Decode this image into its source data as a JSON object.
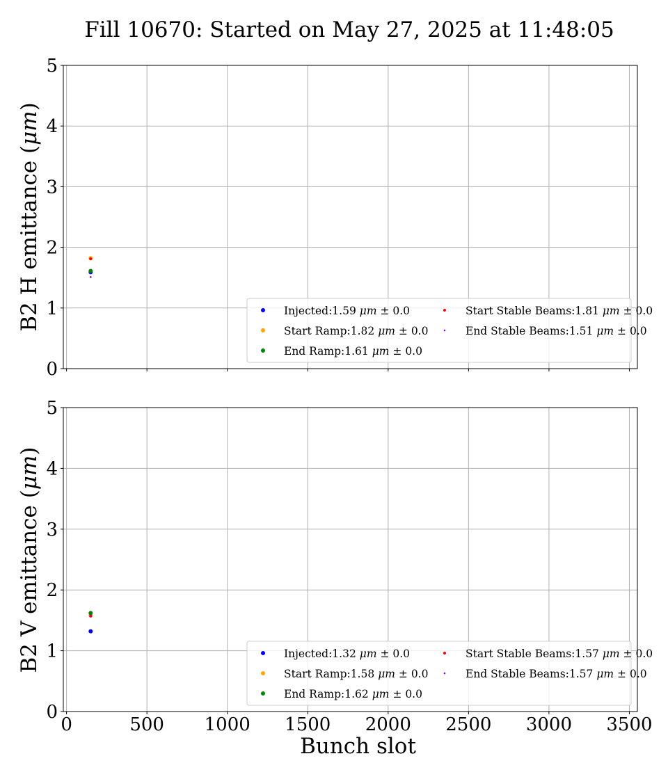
{
  "figure": {
    "title": "Fill 10670: Started on May 27, 2025 at 11:48:05"
  },
  "chart_data": [
    {
      "type": "scatter",
      "ylabel": "B2 H emittance ($\\mu m$)",
      "ylabel_parts": [
        "B2 H emittance (",
        "μm",
        ")"
      ],
      "xlabel": "",
      "xlim": [
        -20,
        3550
      ],
      "ylim": [
        0,
        5
      ],
      "xticks": [
        0,
        500,
        1000,
        1500,
        2000,
        2500,
        3000,
        3500
      ],
      "yticks": [
        0,
        1,
        2,
        3,
        4,
        5
      ],
      "show_xtick_labels": false,
      "grid": true,
      "legend_position": "lower right",
      "legend_columns": 2,
      "series": [
        {
          "name": "Injected",
          "label": "Injected:1.59",
          "value": "1.59",
          "err": "0.0",
          "color": "#0000ff",
          "radius": 3,
          "points": [
            [
              150,
              1.59
            ]
          ]
        },
        {
          "name": "Start Ramp",
          "label": "Start Ramp:1.82",
          "value": "1.82",
          "err": "0.0",
          "color": "#ffa500",
          "radius": 3,
          "points": [
            [
              150,
              1.82
            ]
          ]
        },
        {
          "name": "End Ramp",
          "label": "End Ramp:1.61",
          "value": "1.61",
          "err": "0.0",
          "color": "#008000",
          "radius": 3,
          "points": [
            [
              150,
              1.61
            ]
          ]
        },
        {
          "name": "Start Stable Beams",
          "label": "Start Stable Beams:1.81",
          "value": "1.81",
          "err": "0.0",
          "color": "#ff0000",
          "radius": 2,
          "points": [
            [
              150,
              1.81
            ]
          ]
        },
        {
          "name": "End Stable Beams",
          "label": "End Stable Beams:1.51",
          "value": "1.51",
          "err": "0.0",
          "color": "#9400d3",
          "radius": 1.3,
          "points": [
            [
              150,
              1.51
            ]
          ]
        }
      ]
    },
    {
      "type": "scatter",
      "ylabel": "B2 V emittance ($\\mu m$)",
      "ylabel_parts": [
        "B2 V emittance (",
        "μm",
        ")"
      ],
      "xlabel": "Bunch slot",
      "xlim": [
        -20,
        3550
      ],
      "ylim": [
        0,
        5
      ],
      "xticks": [
        0,
        500,
        1000,
        1500,
        2000,
        2500,
        3000,
        3500
      ],
      "yticks": [
        0,
        1,
        2,
        3,
        4,
        5
      ],
      "show_xtick_labels": true,
      "grid": true,
      "legend_position": "lower right",
      "legend_columns": 2,
      "series": [
        {
          "name": "Injected",
          "label": "Injected:1.32",
          "value": "1.32",
          "err": "0.0",
          "color": "#0000ff",
          "radius": 3,
          "points": [
            [
              150,
              1.32
            ]
          ]
        },
        {
          "name": "Start Ramp",
          "label": "Start Ramp:1.58",
          "value": "1.58",
          "err": "0.0",
          "color": "#ffa500",
          "radius": 3,
          "points": [
            [
              150,
              1.58
            ]
          ]
        },
        {
          "name": "End Ramp",
          "label": "End Ramp:1.62",
          "value": "1.62",
          "err": "0.0",
          "color": "#008000",
          "radius": 3,
          "points": [
            [
              150,
              1.62
            ]
          ]
        },
        {
          "name": "Start Stable Beams",
          "label": "Start Stable Beams:1.57",
          "value": "1.57",
          "err": "0.0",
          "color": "#ff0000",
          "radius": 2,
          "points": [
            [
              150,
              1.57
            ]
          ]
        },
        {
          "name": "End Stable Beams",
          "label": "End Stable Beams:1.57",
          "value": "1.57",
          "err": "0.0",
          "color": "#9400d3",
          "radius": 1.3,
          "points": [
            [
              150,
              1.57
            ]
          ]
        }
      ]
    }
  ],
  "legend_text": {
    "unit": "μm",
    "plus_minus": "±"
  }
}
